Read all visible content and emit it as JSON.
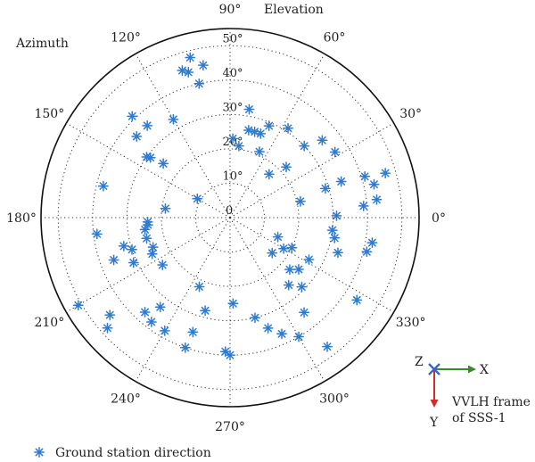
{
  "chart_data": {
    "type": "scatter",
    "coordinate_system": "polar",
    "angle_label": "Azimuth",
    "radius_label": "Elevation",
    "angle_ticks": [
      0,
      30,
      60,
      90,
      120,
      150,
      180,
      210,
      240,
      270,
      300,
      330
    ],
    "angle_tick_labels": [
      "0°",
      "30°",
      "60°",
      "90°",
      "120°",
      "150°",
      "180°",
      "210°",
      "240°",
      "270°",
      "300°",
      "330°"
    ],
    "radius_ticks": [
      0,
      10,
      20,
      30,
      40,
      50
    ],
    "radius_tick_labels": [
      "0",
      "10°",
      "20°",
      "30°",
      "40°",
      "50°"
    ],
    "radius_range": [
      0,
      55
    ],
    "grid": true,
    "legend_position": "bottom-left",
    "series": [
      {
        "name": "Ground station direction",
        "marker": "asterisk",
        "color": "#2e7bd0",
        "points": [
          {
            "az": 16,
            "el": 47
          },
          {
            "az": 17,
            "el": 41
          },
          {
            "az": 13,
            "el": 43
          },
          {
            "az": 18,
            "el": 34
          },
          {
            "az": 32,
            "el": 36
          },
          {
            "az": 1,
            "el": 31
          },
          {
            "az": 13,
            "el": 21
          },
          {
            "az": 17,
            "el": 29
          },
          {
            "az": 42,
            "el": 22
          },
          {
            "az": 48,
            "el": 17
          },
          {
            "az": 66,
            "el": 21
          },
          {
            "az": 70,
            "el": 26
          },
          {
            "az": 74,
            "el": 26
          },
          {
            "az": 67,
            "el": 29
          },
          {
            "az": 80,
            "el": 32
          },
          {
            "az": 78,
            "el": 26
          },
          {
            "az": 88,
            "el": 23
          },
          {
            "az": 83,
            "el": 21
          },
          {
            "az": 57,
            "el": 31
          },
          {
            "az": 44,
            "el": 30
          },
          {
            "az": 40,
            "el": 35
          },
          {
            "az": 104,
            "el": 48
          },
          {
            "az": 106,
            "el": 44
          },
          {
            "az": 108,
            "el": 45
          },
          {
            "az": 100,
            "el": 45
          },
          {
            "az": 103,
            "el": 40
          },
          {
            "az": 120,
            "el": 33
          },
          {
            "az": 134,
            "el": 41
          },
          {
            "az": 139,
            "el": 36
          },
          {
            "az": 132,
            "el": 36
          },
          {
            "az": 144,
            "el": 30
          },
          {
            "az": 143,
            "el": 29
          },
          {
            "az": 141,
            "el": 25
          },
          {
            "az": 150,
            "el": 11
          },
          {
            "az": 166,
            "el": 38
          },
          {
            "az": 187,
            "el": 39
          },
          {
            "az": 195,
            "el": 32
          },
          {
            "az": 200,
            "el": 36
          },
          {
            "az": 198,
            "el": 30
          },
          {
            "az": 194,
            "el": 25
          },
          {
            "az": 188,
            "el": 25
          },
          {
            "az": 185,
            "el": 24
          },
          {
            "az": 183,
            "el": 24
          },
          {
            "az": 172,
            "el": 19
          },
          {
            "az": 201,
            "el": 24
          },
          {
            "az": 205,
            "el": 31
          },
          {
            "az": 205,
            "el": 25
          },
          {
            "az": 215,
            "el": 24
          },
          {
            "az": 210,
            "el": 51
          },
          {
            "az": 219,
            "el": 45
          },
          {
            "az": 222,
            "el": 48
          },
          {
            "az": 228,
            "el": 37
          },
          {
            "az": 232,
            "el": 33
          },
          {
            "az": 233,
            "el": 38
          },
          {
            "az": 240,
            "el": 38
          },
          {
            "az": 246,
            "el": 22
          },
          {
            "az": 251,
            "el": 40
          },
          {
            "az": 252,
            "el": 35
          },
          {
            "az": 255,
            "el": 28
          },
          {
            "az": 268,
            "el": 39
          },
          {
            "az": 270,
            "el": 40
          },
          {
            "az": 272,
            "el": 25
          },
          {
            "az": 284,
            "el": 30
          },
          {
            "az": 289,
            "el": 34
          },
          {
            "az": 294,
            "el": 37
          },
          {
            "az": 300,
            "el": 40
          },
          {
            "az": 316,
            "el": 29
          },
          {
            "az": 311,
            "el": 26
          },
          {
            "az": 319,
            "el": 23
          },
          {
            "az": 320,
            "el": 16
          },
          {
            "az": 323,
            "el": 25
          },
          {
            "az": 330,
            "el": 18
          },
          {
            "az": 332,
            "el": 26
          },
          {
            "az": 334,
            "el": 20
          },
          {
            "az": 338,
            "el": 15
          },
          {
            "az": 342,
            "el": 33
          },
          {
            "az": 349,
            "el": 31
          },
          {
            "az": 346,
            "el": 41
          },
          {
            "az": 353,
            "el": 30
          },
          {
            "az": 5,
            "el": 39
          },
          {
            "az": 7,
            "el": 43
          },
          {
            "az": 327,
            "el": 44
          },
          {
            "az": 307,
            "el": 47
          },
          {
            "az": 308,
            "el": 35
          },
          {
            "az": 350,
            "el": 42
          }
        ]
      }
    ]
  },
  "frame": {
    "z_label": "Z",
    "x_label": "X",
    "y_label": "Y",
    "frame_line1": "VVLH frame",
    "frame_line2": "of SSS-1",
    "x_axis_color": "#3a8a2e",
    "y_axis_color": "#d42a2a",
    "origin_color": "#3566c8"
  },
  "legend": {
    "entry_label": "Ground station direction"
  }
}
